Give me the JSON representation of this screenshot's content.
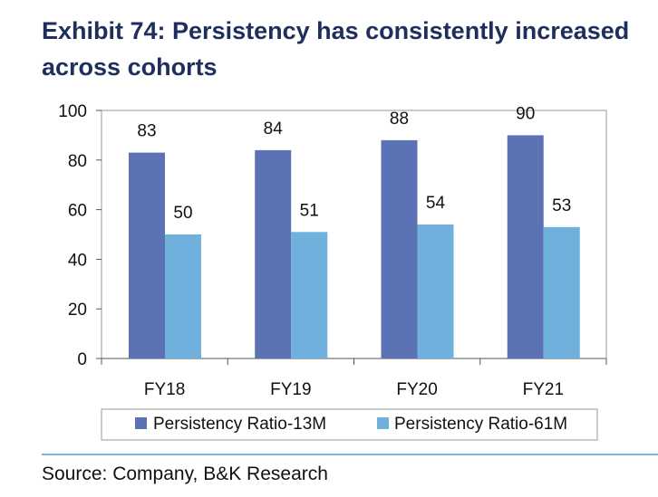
{
  "title": "Exhibit 74: Persistency has consistently increased across cohorts",
  "source": "Source: Company, B&K Research",
  "colors": {
    "series1": "#5b72b4",
    "series2": "#70b0dc",
    "title": "#1f2e5c",
    "rule": "#7fb2e0"
  },
  "chart_data": {
    "type": "bar",
    "categories": [
      "FY18",
      "FY19",
      "FY20",
      "FY21"
    ],
    "series": [
      {
        "name": "Persistency Ratio-13M",
        "values": [
          83,
          84,
          88,
          90
        ]
      },
      {
        "name": "Persistency Ratio-61M",
        "values": [
          50,
          51,
          54,
          53
        ]
      }
    ],
    "ylim": [
      0,
      100
    ],
    "yticks": [
      0,
      20,
      40,
      60,
      80,
      100
    ],
    "grid": false,
    "legend": "bottom",
    "xlabel": "",
    "ylabel": ""
  }
}
